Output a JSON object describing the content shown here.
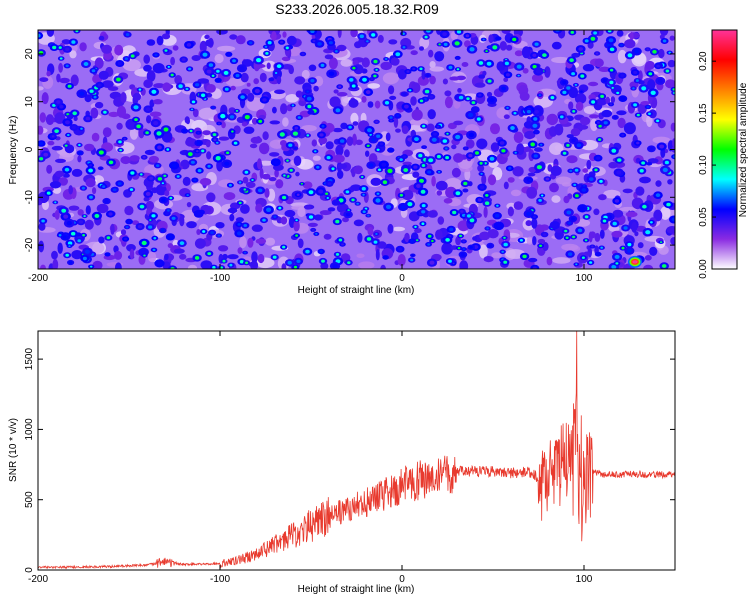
{
  "title": "S233.2026.005.18.32.R09",
  "chart_data": [
    {
      "type": "heatmap",
      "title": "S233.2026.005.18.32.R09",
      "xlabel": "Height of straight line (km)",
      "ylabel": "Frequency (Hz)",
      "xlim": [
        -200,
        150
      ],
      "ylim": [
        -25,
        25
      ],
      "xticks": [
        -200,
        -100,
        0,
        100
      ],
      "yticks": [
        20,
        10,
        0,
        -10,
        -20
      ],
      "colorbar": {
        "label": "Normalized spectral amplitude",
        "range": [
          0,
          0.23
        ],
        "ticks": [
          "0.00",
          "0.05",
          "0.10",
          "0.15",
          "0.20"
        ],
        "colors": [
          "#ffffff",
          "#8a2be2",
          "#0000ff",
          "#00ffff",
          "#00ff00",
          "#ffff00",
          "#ff8000",
          "#ff0000",
          "#ff3399"
        ]
      },
      "description_values": {
        "background_level": 0.01,
        "typical_blob_level": 0.05,
        "max_amplitude": 0.23,
        "max_location": {
          "x": 128,
          "y": -23.5
        }
      }
    },
    {
      "type": "line",
      "xlabel": "Height of straight line (km)",
      "ylabel": "SNR (10 * v/v)",
      "xlim": [
        -200,
        150
      ],
      "ylim": [
        0,
        1700
      ],
      "xticks": [
        -200,
        -100,
        0,
        100
      ],
      "yticks": [
        0,
        500,
        1000,
        1500
      ],
      "series": [
        {
          "name": "SNR",
          "color": "#e83a2e",
          "x": [
            -200,
            -180,
            -160,
            -140,
            -130,
            -120,
            -100,
            -90,
            -80,
            -70,
            -60,
            -50,
            -40,
            -30,
            -20,
            -10,
            0,
            10,
            20,
            30,
            40,
            50,
            60,
            70,
            75,
            80,
            85,
            90,
            95,
            100,
            105,
            110,
            120,
            130,
            140,
            150
          ],
          "values": [
            20,
            20,
            25,
            35,
            60,
            40,
            45,
            70,
            110,
            180,
            250,
            320,
            380,
            430,
            480,
            540,
            600,
            640,
            680,
            700,
            700,
            700,
            690,
            700,
            650,
            700,
            800,
            700,
            850,
            600,
            700,
            680,
            680,
            680,
            680,
            680
          ],
          "peak": {
            "x": 96,
            "value": 1700
          }
        }
      ]
    }
  ]
}
